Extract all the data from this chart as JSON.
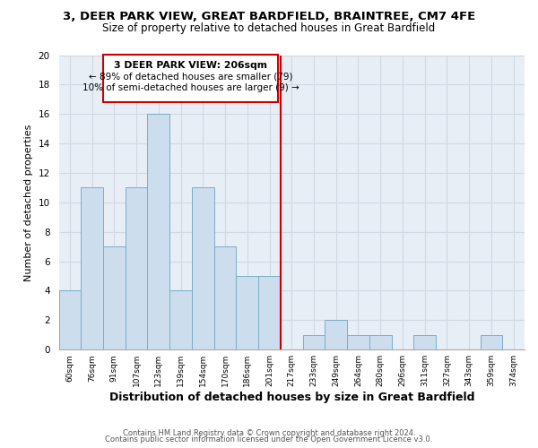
{
  "title": "3, DEER PARK VIEW, GREAT BARDFIELD, BRAINTREE, CM7 4FE",
  "subtitle": "Size of property relative to detached houses in Great Bardfield",
  "xlabel": "Distribution of detached houses by size in Great Bardfield",
  "ylabel": "Number of detached properties",
  "bin_labels": [
    "60sqm",
    "76sqm",
    "91sqm",
    "107sqm",
    "123sqm",
    "139sqm",
    "154sqm",
    "170sqm",
    "186sqm",
    "201sqm",
    "217sqm",
    "233sqm",
    "249sqm",
    "264sqm",
    "280sqm",
    "296sqm",
    "311sqm",
    "327sqm",
    "343sqm",
    "359sqm",
    "374sqm"
  ],
  "bar_heights": [
    4,
    11,
    7,
    11,
    16,
    4,
    11,
    7,
    5,
    5,
    0,
    1,
    2,
    1,
    1,
    0,
    1,
    0,
    0,
    1,
    0
  ],
  "bar_color": "#ccdded",
  "bar_edge_color": "#7aaec8",
  "vline_x": 9.5,
  "vline_color": "#cc0000",
  "annotation_title": "3 DEER PARK VIEW: 206sqm",
  "annotation_line1": "← 89% of detached houses are smaller (79)",
  "annotation_line2": "10% of semi-detached houses are larger (9) →",
  "annotation_box_color": "#ffffff",
  "annotation_box_edge": "#cc0000",
  "ylim": [
    0,
    20
  ],
  "yticks": [
    0,
    2,
    4,
    6,
    8,
    10,
    12,
    14,
    16,
    18,
    20
  ],
  "footer1": "Contains HM Land Registry data © Crown copyright and database right 2024.",
  "footer2": "Contains public sector information licensed under the Open Government Licence v3.0.",
  "bg_color": "#e8eef5",
  "grid_color": "#d0d8e4"
}
